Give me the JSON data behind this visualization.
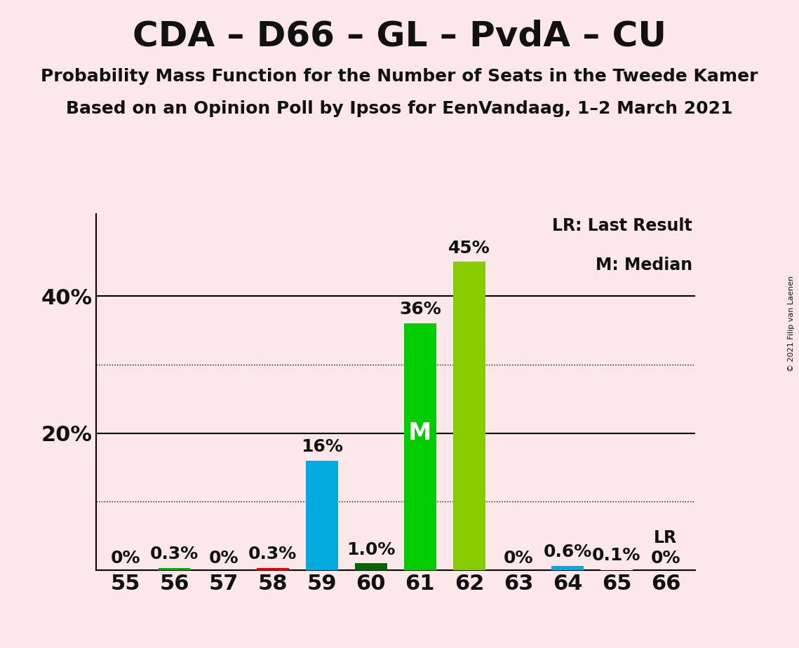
{
  "title": "CDA – D66 – GL – PvdA – CU",
  "subtitle1": "Probability Mass Function for the Number of Seats in the Tweede Kamer",
  "subtitle2": "Based on an Opinion Poll by Ipsos for EenVandaag, 1–2 March 2021",
  "copyright": "© 2021 Filip van Laenen",
  "legend1": "LR: Last Result",
  "legend2": "M: Median",
  "lr_label": "LR",
  "background_color": "#fce8e8",
  "categories": [
    55,
    56,
    57,
    58,
    59,
    60,
    61,
    62,
    63,
    64,
    65,
    66
  ],
  "values": [
    0.0,
    0.3,
    0.0,
    0.3,
    16.0,
    1.0,
    36.0,
    45.0,
    0.0,
    0.6,
    0.1,
    0.0
  ],
  "bar_colors": [
    "#fce8e8",
    "#00aa00",
    "#fce8e8",
    "#dd0000",
    "#00aadd",
    "#006600",
    "#00cc00",
    "#88cc00",
    "#fce8e8",
    "#00aadd",
    "#fce8e8",
    "#fce8e8"
  ],
  "label_texts": [
    "0%",
    "0.3%",
    "0%",
    "0.3%",
    "16%",
    "1.0%",
    "36%",
    "45%",
    "0%",
    "0.6%",
    "0.1%",
    "0%"
  ],
  "median_bar_index": 6,
  "median_label": "M",
  "dotted_lines": [
    10,
    30
  ],
  "solid_lines": [
    20,
    40
  ],
  "ylim": [
    0,
    52
  ],
  "title_fontsize": 36,
  "subtitle_fontsize": 18,
  "axis_label_fontsize": 22,
  "bar_label_fontsize": 18,
  "median_fontsize": 24,
  "lr_bar_index": 11,
  "legend_fontsize": 17
}
